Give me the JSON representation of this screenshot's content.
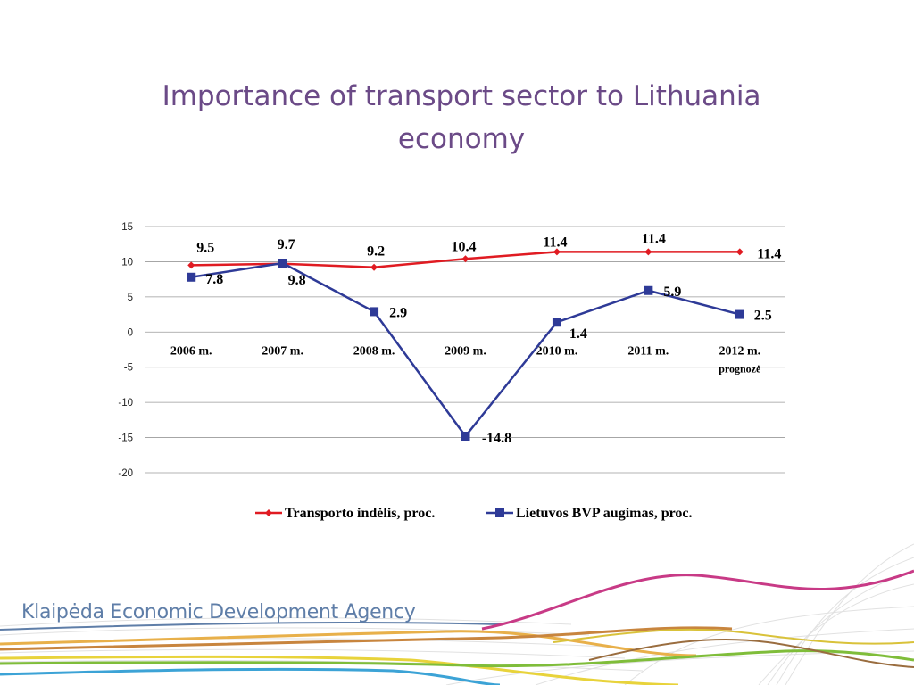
{
  "slide": {
    "title": "Importance of transport sector to Lithuania economy",
    "footer": "Klaipėda Economic Development Agency"
  },
  "chart_data": {
    "type": "line",
    "title": "",
    "xlabel": "",
    "ylabel": "",
    "categories": [
      "2006 m.",
      "2007 m.",
      "2008 m.",
      "2009 m.",
      "2010 m.",
      "2011 m.",
      "2012 m."
    ],
    "category_sublabels": [
      "",
      "",
      "",
      "",
      "",
      "",
      "prognozė"
    ],
    "ylim": [
      -20,
      15
    ],
    "yticks": [
      15,
      10,
      5,
      0,
      -5,
      -10,
      -15,
      -20
    ],
    "grid": true,
    "legend_position": "bottom",
    "series": [
      {
        "name": "Transporto indėlis, proc.",
        "color": "#e01b22",
        "marker": "diamond",
        "values": [
          9.5,
          9.7,
          9.2,
          10.4,
          11.4,
          11.4,
          11.4
        ],
        "labels": [
          "9.5",
          "9.7",
          "9.2",
          "10.4",
          "11.4",
          "11.4",
          "11.4"
        ]
      },
      {
        "name": "Lietuvos BVP augimas, proc.",
        "color": "#2e3a97",
        "marker": "square",
        "values": [
          7.8,
          9.8,
          2.9,
          -14.8,
          1.4,
          5.9,
          2.5
        ],
        "labels": [
          "7.8",
          "9.8",
          "2.9",
          "-14.8",
          "1.4",
          "5.9",
          "2.5"
        ]
      }
    ]
  }
}
